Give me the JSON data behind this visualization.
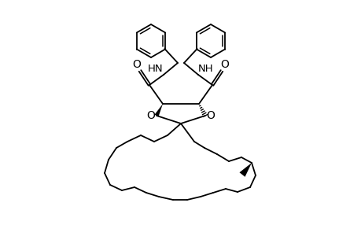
{
  "bg_color": "#ffffff",
  "lw": 1.3,
  "figsize": [
    4.6,
    3.0
  ],
  "dpi": 100,
  "xlim": [
    0,
    460
  ],
  "ylim": [
    0,
    300
  ]
}
